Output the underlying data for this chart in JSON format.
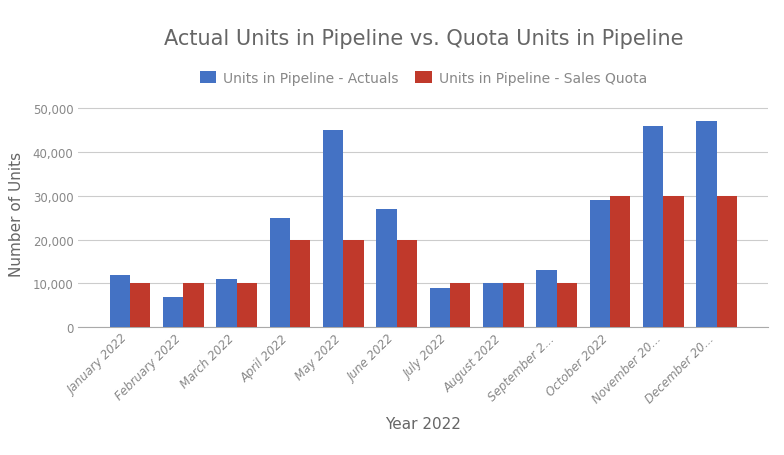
{
  "title": "Actual Units in Pipeline vs. Quota Units in Pipeline",
  "xlabel": "Year 2022",
  "ylabel": "Number of Units",
  "categories": [
    "January 2022",
    "February 2022",
    "March 2022",
    "April 2022",
    "May 2022",
    "June 2022",
    "July 2022",
    "August 2022",
    "September 2...",
    "October 2022",
    "November 20...",
    "December 20..."
  ],
  "actuals": [
    12000,
    7000,
    11000,
    25000,
    45000,
    27000,
    9000,
    10000,
    13000,
    29000,
    46000,
    47000
  ],
  "quota": [
    10000,
    10000,
    10000,
    20000,
    20000,
    20000,
    10000,
    10000,
    10000,
    30000,
    30000,
    30000
  ],
  "actuals_color": "#4472C4",
  "quota_color": "#C0392B",
  "actuals_label": "Units in Pipeline - Actuals",
  "quota_label": "Units in Pipeline - Sales Quota",
  "ylim": [
    0,
    52000
  ],
  "yticks": [
    0,
    10000,
    20000,
    30000,
    40000,
    50000
  ],
  "background_color": "#ffffff",
  "grid_color": "#cccccc",
  "title_fontsize": 15,
  "axis_label_fontsize": 11,
  "tick_fontsize": 8.5,
  "legend_fontsize": 10,
  "title_color": "#666666",
  "axis_label_color": "#666666",
  "tick_color": "#888888"
}
